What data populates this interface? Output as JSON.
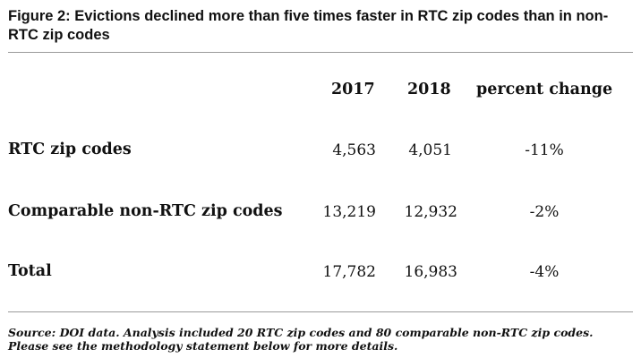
{
  "title": "Figure 2: Evictions declined more than five times faster in RTC zip codes than in non-RTC zip codes",
  "chart_data": {
    "type": "table",
    "columns": [
      "2017",
      "2018",
      "percent change"
    ],
    "rows": [
      {
        "label": "RTC zip codes",
        "values": [
          "4,563",
          "4,051",
          "-11%"
        ]
      },
      {
        "label": "Comparable non-RTC zip codes",
        "values": [
          "13,219",
          "12,932",
          "-2%"
        ]
      },
      {
        "label": "Total",
        "values": [
          "17,782",
          "16,983",
          "-4%"
        ]
      }
    ]
  },
  "source": "Source: DOI data. Analysis included 20 RTC zip codes and 80 comparable non-RTC zip codes. Please see the methodology statement below for more details."
}
